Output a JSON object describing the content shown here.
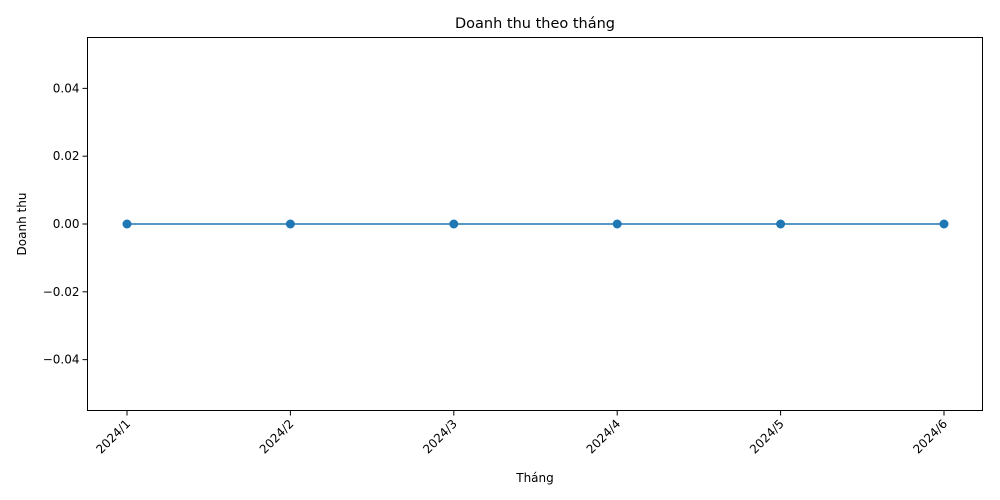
{
  "chart_data": {
    "type": "line",
    "title": "Doanh thu theo tháng",
    "xlabel": "Tháng",
    "ylabel": "Doanh thu",
    "categories": [
      "2024/1",
      "2024/2",
      "2024/3",
      "2024/4",
      "2024/5",
      "2024/6"
    ],
    "series": [
      {
        "values": [
          0,
          0,
          0,
          0,
          0,
          0
        ],
        "color": "#1f77b4",
        "marker": "circle"
      }
    ],
    "ylim": [
      -0.055,
      0.055
    ],
    "yticks": [
      -0.04,
      -0.02,
      0.0,
      0.02,
      0.04
    ],
    "ytick_labels": [
      "−0.04",
      "−0.02",
      "0.00",
      "0.02",
      "0.04"
    ],
    "grid": false,
    "legend": "none"
  }
}
